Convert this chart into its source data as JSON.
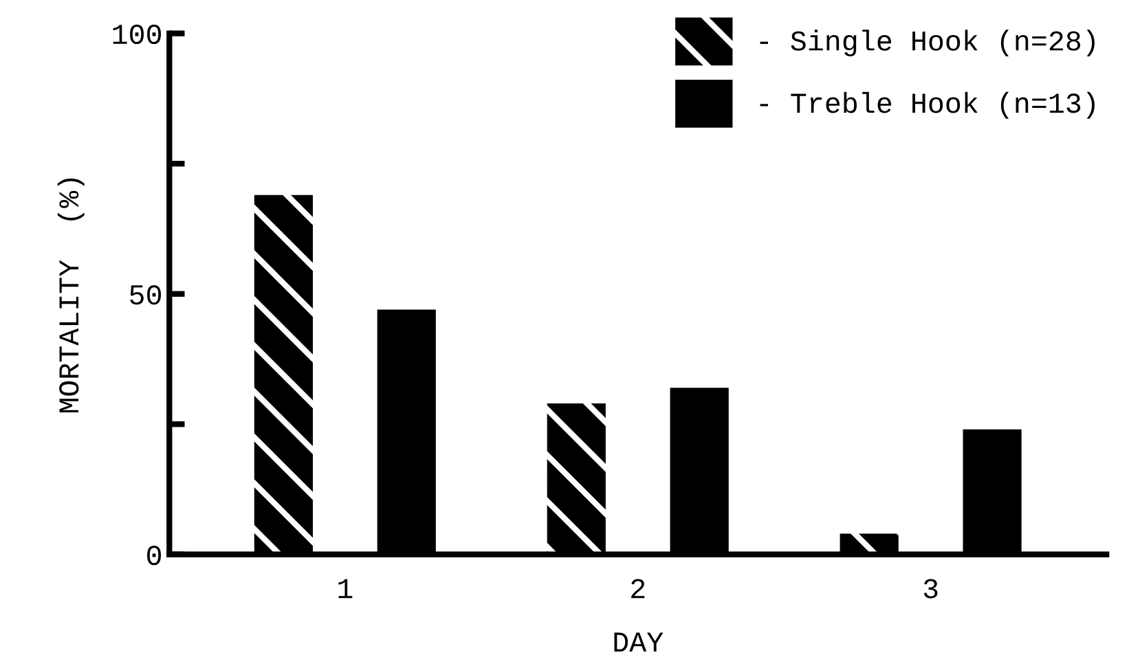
{
  "chart_data": {
    "type": "bar",
    "xlabel": "DAY",
    "ylabel": "MORTALITY  (%)",
    "categories": [
      "1",
      "2",
      "3"
    ],
    "series": [
      {
        "name": "- Single Hook (n=28)",
        "color": "#000000",
        "values": [
          69,
          29,
          4
        ]
      },
      {
        "name": "- Treble Hook (n=13)",
        "color": "#000000",
        "values": [
          47,
          32,
          24
        ]
      }
    ],
    "ylim": [
      0,
      100
    ],
    "yticks": [
      0,
      {
        "value": 25,
        "label": null
      },
      50,
      {
        "value": 75,
        "label": null
      },
      100
    ],
    "grid": false,
    "legend": "top right"
  }
}
